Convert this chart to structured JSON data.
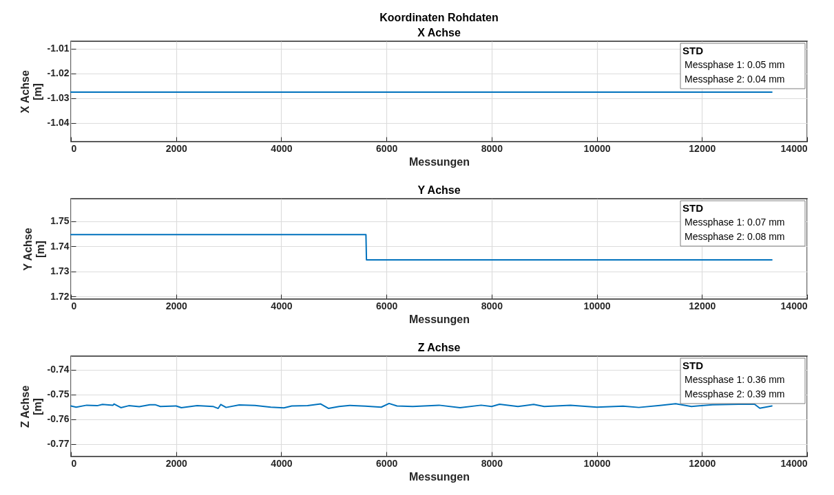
{
  "chart_data": [
    {
      "type": "line",
      "title": "Koordinaten Rohdaten",
      "subtitle": "X Achse",
      "xlabel": "Messungen",
      "ylabel": "X Achse\n[m]",
      "xlim": [
        0,
        14000
      ],
      "xticks": [
        0,
        2000,
        4000,
        6000,
        8000,
        10000,
        12000,
        14000
      ],
      "ylim": [
        -1.0475,
        -1.007
      ],
      "yticks": [
        -1.04,
        -1.03,
        -1.02,
        -1.01
      ],
      "grid": true,
      "annotations": [
        "STD",
        "Messphase 1: 0.05 mm",
        "Messphase 2: 0.04 mm"
      ],
      "series": [
        {
          "color": "#0072bd",
          "x": [
            0,
            13330
          ],
          "values": [
            -1.0275,
            -1.0275
          ]
        }
      ]
    },
    {
      "type": "line",
      "title": "Y Achse",
      "xlabel": "Messungen",
      "ylabel": "Y Achse\n[m]",
      "xlim": [
        0,
        14000
      ],
      "xticks": [
        0,
        2000,
        4000,
        6000,
        8000,
        10000,
        12000,
        14000
      ],
      "ylim": [
        1.719,
        1.759
      ],
      "yticks": [
        1.72,
        1.73,
        1.74,
        1.75
      ],
      "grid": true,
      "annotations": [
        "STD",
        "Messphase 1: 0.07 mm",
        "Messphase 2: 0.08 mm"
      ],
      "series": [
        {
          "color": "#0072bd",
          "x": [
            0,
            5610,
            5620,
            13330
          ],
          "values": [
            1.7447,
            1.7447,
            1.7346,
            1.7346
          ]
        }
      ]
    },
    {
      "type": "line",
      "title": "Z Achse",
      "xlabel": "Messungen",
      "ylabel": "Z Achse\n[m]",
      "xlim": [
        0,
        14000
      ],
      "xticks": [
        0,
        2000,
        4000,
        6000,
        8000,
        10000,
        12000,
        14000
      ],
      "ylim": [
        -0.775,
        -0.7345
      ],
      "yticks": [
        -0.77,
        -0.76,
        -0.75,
        -0.74
      ],
      "grid": true,
      "annotations": [
        "STD",
        "Messphase 1: 0.36 mm",
        "Messphase 2: 0.39 mm"
      ],
      "series": [
        {
          "color": "#0072bd",
          "x": [
            0,
            100,
            300,
            500,
            600,
            800,
            820,
            950,
            1100,
            1300,
            1500,
            1600,
            1700,
            2000,
            2100,
            2400,
            2700,
            2800,
            2850,
            2950,
            3200,
            3500,
            3800,
            4050,
            4200,
            4500,
            4750,
            4900,
            5100,
            5300,
            5600,
            5900,
            6050,
            6200,
            6500,
            7000,
            7400,
            7800,
            8000,
            8150,
            8500,
            8800,
            9000,
            9500,
            10000,
            10500,
            10800,
            11200,
            11500,
            11800,
            12200,
            12700,
            13000,
            13100,
            13330
          ],
          "values": [
            -0.7546,
            -0.7551,
            -0.7543,
            -0.7545,
            -0.754,
            -0.7543,
            -0.7538,
            -0.7553,
            -0.7545,
            -0.7549,
            -0.7541,
            -0.7541,
            -0.7548,
            -0.7546,
            -0.7553,
            -0.7545,
            -0.7548,
            -0.7556,
            -0.754,
            -0.7552,
            -0.7542,
            -0.7544,
            -0.7551,
            -0.7554,
            -0.7546,
            -0.7545,
            -0.7538,
            -0.7556,
            -0.7548,
            -0.7544,
            -0.7547,
            -0.7551,
            -0.7536,
            -0.7546,
            -0.7548,
            -0.7543,
            -0.7553,
            -0.7543,
            -0.7548,
            -0.7539,
            -0.7548,
            -0.754,
            -0.7548,
            -0.7543,
            -0.7551,
            -0.7547,
            -0.7552,
            -0.7544,
            -0.7537,
            -0.7548,
            -0.7541,
            -0.7539,
            -0.7539,
            -0.7555,
            -0.7546
          ]
        }
      ]
    }
  ]
}
